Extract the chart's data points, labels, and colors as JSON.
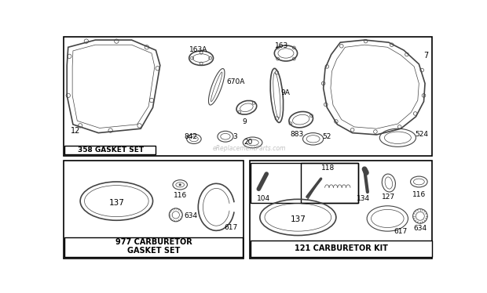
{
  "bg_color": "#ffffff",
  "border_color": "#000000",
  "gc": "#444444",
  "lc": "#000000",
  "watermark": "eReplacementParts.com",
  "sec1_label": "358 GASKET SET",
  "sec2_label": "977 CARBURETOR\nGASKET SET",
  "sec3_label": "121 CARBURETOR KIT"
}
